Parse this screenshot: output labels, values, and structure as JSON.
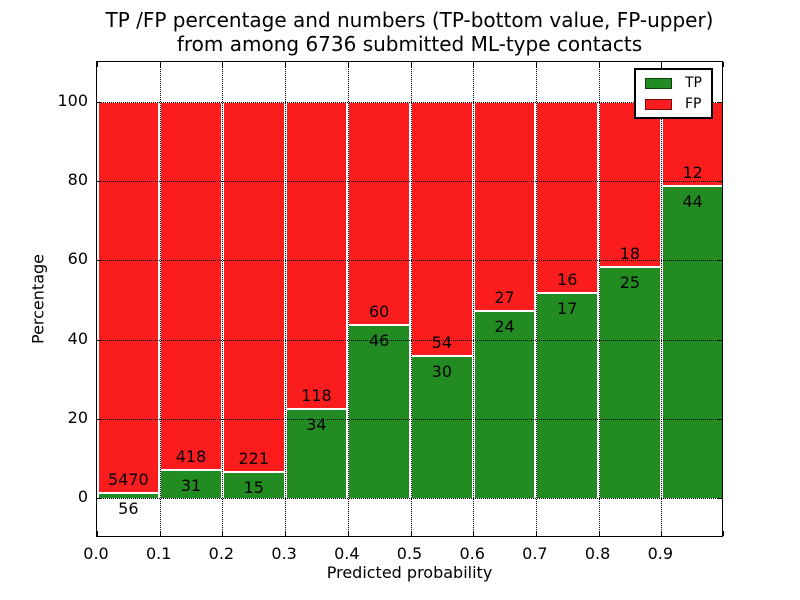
{
  "title": {
    "line1": "TP /FP percentage and numbers (TP-bottom value, FP-upper)",
    "line2": "from among 6736 submitted ML-type contacts"
  },
  "legend": {
    "items": [
      {
        "label": "TP",
        "color": "#228b22"
      },
      {
        "label": "FP",
        "color": "#fb1d1d"
      }
    ]
  },
  "chart_data": {
    "type": "bar",
    "stacked": true,
    "bars_normalized_to": 100,
    "title": "TP /FP percentage and numbers (TP-bottom value, FP-upper) from among 6736 submitted ML-type contacts",
    "xlabel": "Predicted probability",
    "ylabel": "Percentage",
    "total_contacts": 6736,
    "bin_start": [
      0.0,
      0.1,
      0.2,
      0.3,
      0.4,
      0.5,
      0.6,
      0.7,
      0.8,
      0.9
    ],
    "bin_width": 0.1,
    "series": [
      {
        "name": "TP",
        "color": "#228b22",
        "counts": [
          56,
          31,
          15,
          34,
          46,
          30,
          24,
          17,
          25,
          44
        ]
      },
      {
        "name": "FP",
        "color": "#fb1d1d",
        "counts": [
          5470,
          418,
          221,
          118,
          60,
          54,
          27,
          16,
          18,
          12
        ]
      }
    ],
    "tp_percent": [
      1.01,
      6.9,
      6.36,
      22.37,
      43.4,
      35.71,
      47.06,
      51.52,
      58.14,
      78.57
    ],
    "xlim": [
      0,
      1
    ],
    "ylim": [
      -10,
      110
    ],
    "xticks": [
      "0.0",
      "0.1",
      "0.2",
      "0.3",
      "0.4",
      "0.5",
      "0.6",
      "0.7",
      "0.8",
      "0.9"
    ],
    "yticks": [
      0,
      20,
      40,
      60,
      80,
      100
    ],
    "grid": "dotted",
    "legend_position": "upper right"
  }
}
